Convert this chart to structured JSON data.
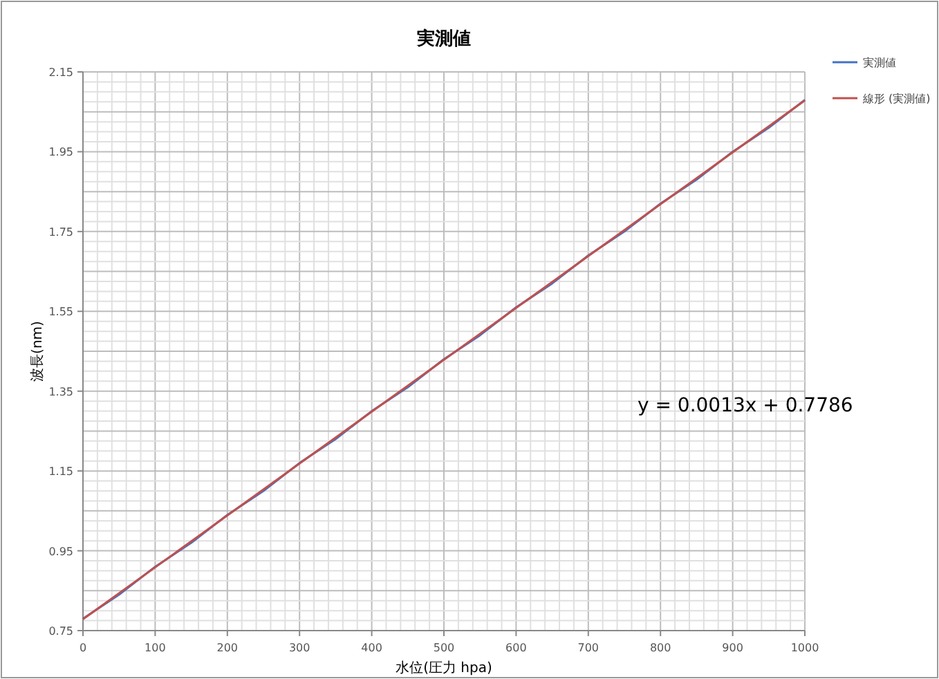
{
  "chart_data": {
    "type": "line",
    "title": "実測値",
    "xlabel": "水位(圧力 hpa)",
    "ylabel": "波長(nm)",
    "x": [
      0,
      50,
      100,
      150,
      200,
      250,
      300,
      350,
      400,
      450,
      500,
      550,
      600,
      650,
      700,
      750,
      800,
      850,
      900,
      950,
      1000
    ],
    "series": [
      {
        "name": "実測値",
        "color": "#4472c4",
        "values": [
          0.78,
          0.84,
          0.91,
          0.97,
          1.04,
          1.1,
          1.17,
          1.23,
          1.3,
          1.36,
          1.43,
          1.49,
          1.56,
          1.62,
          1.69,
          1.75,
          1.82,
          1.88,
          1.95,
          2.01,
          2.08
        ]
      },
      {
        "name": "線形 (実測値)",
        "color": "#c0504d",
        "x": [
          0,
          1000
        ],
        "values": [
          0.7786,
          2.0786
        ]
      }
    ],
    "xlim": [
      0,
      1000
    ],
    "xticks": [
      0,
      100,
      200,
      300,
      400,
      500,
      600,
      700,
      800,
      900,
      1000
    ],
    "ylim": [
      0.75,
      2.15
    ],
    "yticks": [
      0.75,
      0.95,
      1.15,
      1.35,
      1.55,
      1.75,
      1.95,
      2.15
    ],
    "grid": true,
    "legend": "top right",
    "marker": "none",
    "line_style": "solid",
    "annotations": [
      "y = 0.0013x + 0.7786"
    ]
  }
}
